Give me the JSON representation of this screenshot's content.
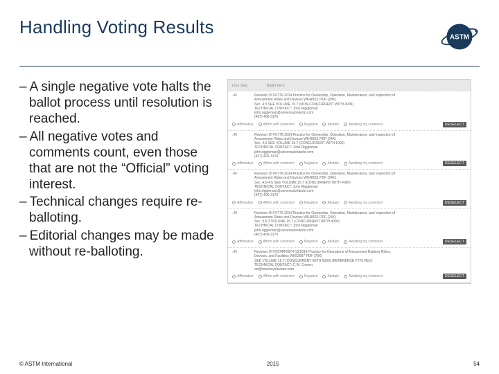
{
  "title": "Handling Voting Results",
  "title_color": "#1a3a5c",
  "rule_color": "#1a3a5c",
  "background": "#ffffff",
  "body_font": "Arial",
  "title_fontsize": 26,
  "bullet_fontsize": 19,
  "bullets": [
    "A single negative vote halts the ballot process until resolution is reached.",
    "All negative votes and comments count, even those that are not the “Official” voting interest.",
    "Technical changes require re-balloting.",
    "Editorial changes may be made without re-balloting."
  ],
  "screenshot": {
    "border_color": "#cfcfcf",
    "bg": "#e8e8e8",
    "header": {
      "col1": "Line Seq",
      "col2": "Ballot Item"
    },
    "options": [
      "Affirmative",
      "Affirm with comment",
      "Negative",
      "Abstain",
      "Awaiting my comment"
    ],
    "deselect_label": "DESELECT",
    "deselect_bg": "#5a5a5a",
    "items": [
      {
        "bal": ".40",
        "lines": [
          "Revision Of F0770-2014 Practice for Ownership, Operation, Maintenance, and Inspection of",
          "Amusement Rides and Devices WK48011 PDF (28K)",
          "Sec. 4.5 SEE VOLUME 15.7 (NON-CONCURRENT WITH 4000)",
          "TECHNICAL CONTACT: John Riggleman",
          "john.riggleman@universalorlando.com",
          "(407) 406-3176"
        ]
      },
      {
        "bal": ".40",
        "lines": [
          "Revision Of F0770-2014 Practice for Ownership, Operation, Maintenance, and Inspection of",
          "Amusement Rides and Devices WK48011 PDF (24K)",
          "Sec. 4.5 SEE VOLUME 15.7 (CONCURRENT WITH 1000)",
          "TECHNICAL CONTACT: John Riggleman",
          "john.riggleman@universalorlando.com",
          "(407) 406-3176"
        ]
      },
      {
        "bal": ".40",
        "lines": [
          "Revision Of F0770-2014 Practice for Ownership, Operation, Maintenance, and Inspection of",
          "Amusement Rides and Devices WK48011 PDF (24K)",
          "Sec. 4.5-4.6 SEE VOLUME 15.7 (CONCURRENT WITH 4000)",
          "TECHNICAL CONTACT: John Riggleman",
          "john.riggleman@universalorlando.com",
          "(407) 406-3176"
        ]
      },
      {
        "bal": ".40",
        "lines": [
          "Revision Of F0770-2014 Practice for Ownership, Operation, Maintenance, and Inspection of",
          "Amusement Rides and Devices WK48011 PDF (24K)",
          "Sec. 9.6.3 VOLUME 15.7 (CONCURRENT WITH 4000)",
          "TECHNICAL CONTACT: John Riggleman",
          "john.riggleman@universalorlando.com",
          "(407) 406-3176"
        ]
      },
      {
        "bal": ".40",
        "lines": [
          "Revision Of F2974/F2974-13/2014 Practice for Operations of Amusement Railway Rides,",
          "Devices, and Facilities WK52687 PDF (76K)",
          "SEE VOLUME 15.7 (CONCURRENT WITH 5000) (REFERENCE F770 REV)",
          "TECHNICAL CONTACT: C.W. Craven",
          "cw@mowreyelevator.com"
        ]
      }
    ]
  },
  "footer": {
    "copyright": "© ASTM International",
    "year": "2015",
    "page": "54"
  }
}
